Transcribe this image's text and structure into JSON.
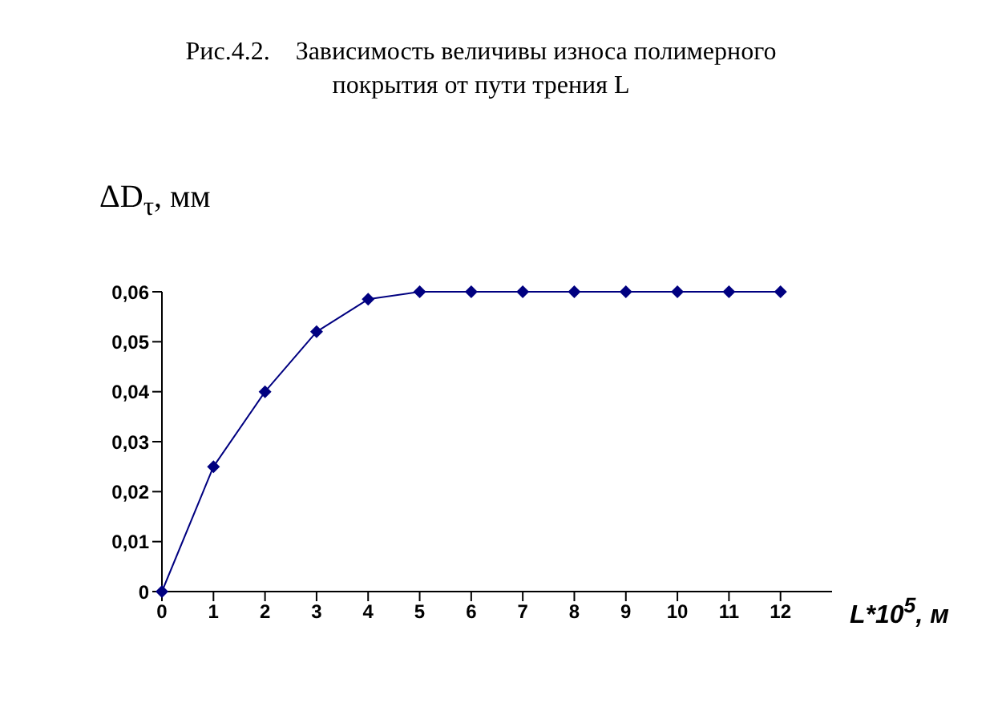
{
  "chart_data": {
    "type": "line",
    "title": "Рис.4.2.    Зависимость величивы износа полимерного\nпокрытия от пути трения L",
    "xlabel": "L*10$^{5}$, м",
    "ylabel": "ΔD$_{τ}$, мм",
    "x": [
      0,
      1,
      2,
      3,
      4,
      5,
      6,
      7,
      8,
      9,
      10,
      11,
      12
    ],
    "series": [
      {
        "color": "#000080",
        "values": [
          0,
          0.025,
          0.04,
          0.052,
          0.0585,
          0.06,
          0.06,
          0.06,
          0.06,
          0.06,
          0.06,
          0.06,
          0.06
        ]
      }
    ],
    "xlim": [
      0,
      13
    ],
    "xticks": [
      0,
      1,
      2,
      3,
      4,
      5,
      6,
      7,
      8,
      9,
      10,
      11,
      12
    ],
    "ylim": [
      0,
      0.06
    ],
    "yticks": [
      0,
      {
        "value": 0.01,
        "label": "0,01"
      },
      {
        "value": 0.02,
        "label": "0,02"
      },
      {
        "value": 0.03,
        "label": "0,03"
      },
      {
        "value": 0.04,
        "label": "0,04"
      },
      {
        "value": 0.05,
        "label": "0,05"
      },
      {
        "value": 0.06,
        "label": "0,06"
      }
    ],
    "marker": "diamond",
    "line_style": "solid",
    "grid": false
  }
}
